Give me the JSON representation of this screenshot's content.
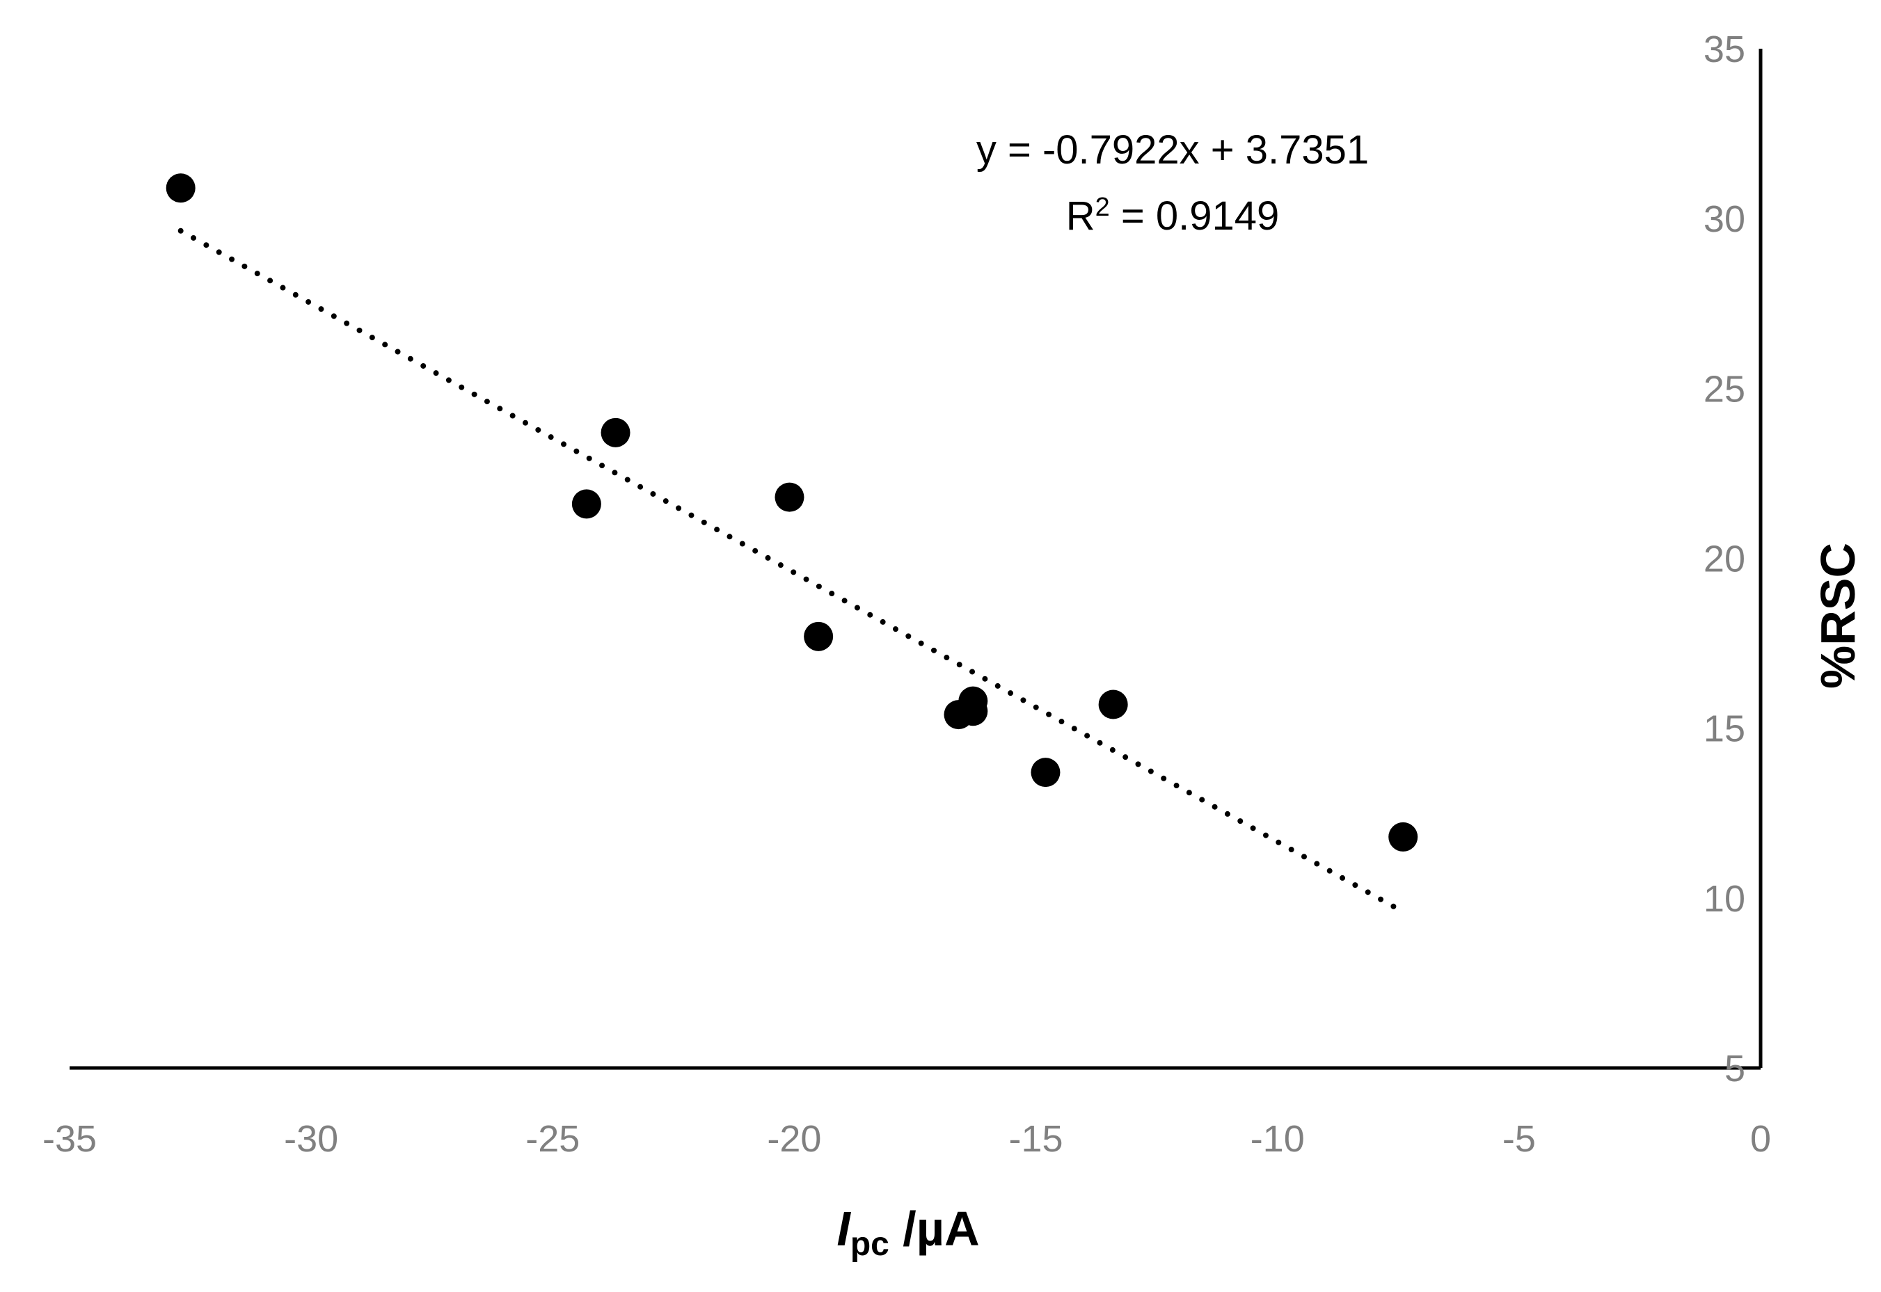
{
  "chart_data": {
    "type": "scatter",
    "title": "",
    "xlabel_main": "I",
    "xlabel_sub": "pc",
    "xlabel_rest": " /µA",
    "ylabel": "%RSC",
    "xlim": [
      -35,
      0
    ],
    "ylim": [
      5,
      35
    ],
    "xticks": [
      "-35",
      "-30",
      "-25",
      "-20",
      "-15",
      "-10",
      "-5",
      "0"
    ],
    "yticks": [
      "5",
      "10",
      "15",
      "20",
      "25",
      "30",
      "35"
    ],
    "grid": false,
    "legend": "none",
    "series": [
      {
        "points": [
          {
            "x": -32.7,
            "y": 30.9
          },
          {
            "x": -23.7,
            "y": 23.7
          },
          {
            "x": -24.3,
            "y": 21.6
          },
          {
            "x": -20.1,
            "y": 21.8
          },
          {
            "x": -19.5,
            "y": 17.7
          },
          {
            "x": -16.6,
            "y": 15.4
          },
          {
            "x": -16.3,
            "y": 15.8
          },
          {
            "x": -16.3,
            "y": 15.5
          },
          {
            "x": -13.4,
            "y": 15.7
          },
          {
            "x": -14.8,
            "y": 13.7
          },
          {
            "x": -7.4,
            "y": 11.8
          }
        ],
        "color": "#000000"
      }
    ],
    "trendline": {
      "style": "dotted",
      "slope": -0.7922,
      "intercept": 3.7351,
      "x_from": -32.7,
      "x_to": -7.4,
      "equation": "y = -0.7922x + 3.7351",
      "r2_prefix": "R",
      "r2_sup": "2",
      "r2_value": " = 0.9149"
    },
    "colors": {
      "axis": "#000000",
      "tick_text": "#808080",
      "marker": "#000000"
    }
  }
}
